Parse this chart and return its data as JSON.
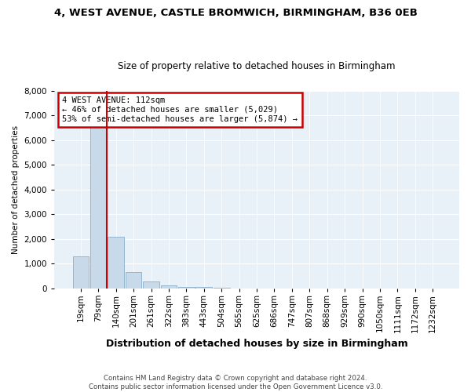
{
  "title": "4, WEST AVENUE, CASTLE BROMWICH, BIRMINGHAM, B36 0EB",
  "subtitle": "Size of property relative to detached houses in Birmingham",
  "xlabel": "Distribution of detached houses by size in Birmingham",
  "ylabel": "Number of detached properties",
  "footer_line1": "Contains HM Land Registry data © Crown copyright and database right 2024.",
  "footer_line2": "Contains public sector information licensed under the Open Government Licence v3.0.",
  "annotation_line1": "4 WEST AVENUE: 112sqm",
  "annotation_line2": "← 46% of detached houses are smaller (5,029)",
  "annotation_line3": "53% of semi-detached houses are larger (5,874) →",
  "bar_labels": [
    "19sqm",
    "79sqm",
    "140sqm",
    "201sqm",
    "261sqm",
    "322sqm",
    "383sqm",
    "443sqm",
    "504sqm",
    "565sqm",
    "625sqm",
    "686sqm",
    "747sqm",
    "807sqm",
    "868sqm",
    "929sqm",
    "990sqm",
    "1050sqm",
    "1111sqm",
    "1172sqm",
    "1232sqm"
  ],
  "bar_values": [
    1300,
    6600,
    2100,
    650,
    280,
    120,
    70,
    50,
    30,
    0,
    0,
    0,
    0,
    0,
    0,
    0,
    0,
    0,
    0,
    0,
    0
  ],
  "bar_color": "#c8daea",
  "bar_edge_color": "#8aafc8",
  "vline_color": "#cc0000",
  "annotation_box_color": "#cc0000",
  "background_color": "#ffffff",
  "plot_bg_color": "#e8f0f8",
  "ylim": [
    0,
    8000
  ],
  "yticks": [
    0,
    1000,
    2000,
    3000,
    4000,
    5000,
    6000,
    7000,
    8000
  ]
}
